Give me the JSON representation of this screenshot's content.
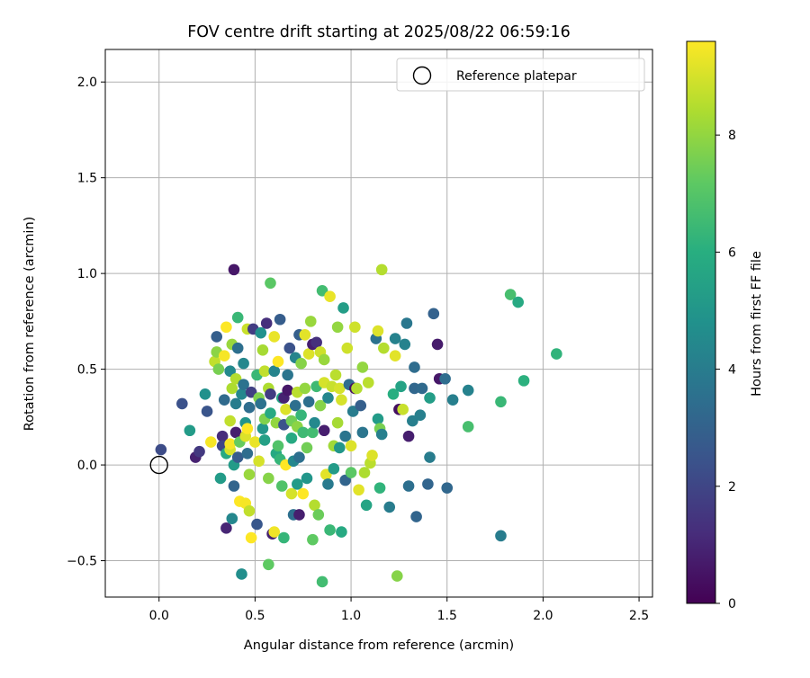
{
  "chart_data": {
    "type": "scatter",
    "title": "FOV centre drift starting at 2025/08/22 06:59:16",
    "xlabel": "Angular distance from reference (arcmin)",
    "ylabel": "Rotation from reference (arcmin)",
    "xlim": [
      -0.28,
      2.57
    ],
    "ylim": [
      -0.69,
      2.17
    ],
    "xticks": [
      0.0,
      0.5,
      1.0,
      1.5,
      2.0,
      2.5
    ],
    "xtick_labels": [
      "0.0",
      "0.5",
      "1.0",
      "1.5",
      "2.0",
      "2.5"
    ],
    "yticks": [
      -0.5,
      0.0,
      0.5,
      1.0,
      1.5,
      2.0
    ],
    "ytick_labels": [
      "−0.5",
      "0.0",
      "0.5",
      "1.0",
      "1.5",
      "2.0"
    ],
    "grid": true,
    "legend": {
      "position": "top-right",
      "entries": [
        {
          "label": "Reference platepar",
          "marker": "open-circle"
        }
      ]
    },
    "reference_point": {
      "x": 0.0,
      "y": 0.0
    },
    "colorbar": {
      "label": "Hours from first FF file",
      "range": [
        0,
        9.6
      ],
      "ticks": [
        0,
        2,
        4,
        6,
        8
      ],
      "tick_labels": [
        "0",
        "2",
        "4",
        "6",
        "8"
      ],
      "colormap": "viridis"
    },
    "series": [
      {
        "color_variable": "Hours from first FF file",
        "points": [
          [
            0.01,
            0.08,
            2.2
          ],
          [
            0.12,
            0.32,
            2.4
          ],
          [
            0.16,
            0.18,
            5.2
          ],
          [
            0.19,
            0.04,
            0.9
          ],
          [
            0.21,
            0.07,
            1.6
          ],
          [
            0.24,
            0.37,
            4.8
          ],
          [
            0.25,
            0.28,
            2.5
          ],
          [
            0.27,
            0.12,
            9.5
          ],
          [
            0.29,
            0.54,
            8.7
          ],
          [
            0.3,
            0.67,
            2.9
          ],
          [
            0.3,
            0.59,
            7.9
          ],
          [
            0.31,
            0.5,
            7.6
          ],
          [
            0.32,
            -0.07,
            5.2
          ],
          [
            0.33,
            0.15,
            1.2
          ],
          [
            0.33,
            0.1,
            2.0
          ],
          [
            0.34,
            0.57,
            9.5
          ],
          [
            0.34,
            0.34,
            3.3
          ],
          [
            0.35,
            0.06,
            5.8
          ],
          [
            0.35,
            0.72,
            9.6
          ],
          [
            0.35,
            -0.33,
            1.0
          ],
          [
            0.37,
            0.08,
            9.0
          ],
          [
            0.37,
            0.49,
            4.5
          ],
          [
            0.38,
            0.63,
            8.1
          ],
          [
            0.38,
            0.4,
            8.4
          ],
          [
            0.37,
            0.23,
            8.7
          ],
          [
            0.37,
            0.11,
            9.5
          ],
          [
            0.38,
            -0.28,
            4.4
          ],
          [
            0.39,
            0.0,
            5.2
          ],
          [
            0.39,
            -0.11,
            3.1
          ],
          [
            0.39,
            1.02,
            0.6
          ],
          [
            0.4,
            0.17,
            0.8
          ],
          [
            0.4,
            0.45,
            8.5
          ],
          [
            0.4,
            0.32,
            4.0
          ],
          [
            0.41,
            0.04,
            2.8
          ],
          [
            0.41,
            0.77,
            6.4
          ],
          [
            0.41,
            0.61,
            3.5
          ],
          [
            0.42,
            -0.19,
            9.6
          ],
          [
            0.42,
            0.12,
            7.3
          ],
          [
            0.43,
            -0.57,
            4.7
          ],
          [
            0.43,
            0.37,
            4.4
          ],
          [
            0.44,
            0.53,
            4.4
          ],
          [
            0.44,
            0.42,
            3.6
          ],
          [
            0.45,
            0.15,
            9.1
          ],
          [
            0.45,
            0.22,
            4.9
          ],
          [
            0.45,
            -0.2,
            9.5
          ],
          [
            0.46,
            0.19,
            9.7
          ],
          [
            0.46,
            0.06,
            3.4
          ],
          [
            0.46,
            0.71,
            8.8
          ],
          [
            0.47,
            -0.05,
            8.1
          ],
          [
            0.47,
            -0.24,
            8.7
          ],
          [
            0.47,
            0.3,
            3.4
          ],
          [
            0.48,
            -0.38,
            9.7
          ],
          [
            0.48,
            0.38,
            1.8
          ],
          [
            0.49,
            0.71,
            1.7
          ],
          [
            0.5,
            0.12,
            9.3
          ],
          [
            0.51,
            0.47,
            6.4
          ],
          [
            0.51,
            -0.31,
            2.6
          ],
          [
            0.52,
            0.02,
            9.0
          ],
          [
            0.52,
            0.35,
            7.7
          ],
          [
            0.53,
            0.69,
            4.8
          ],
          [
            0.53,
            0.32,
            3.6
          ],
          [
            0.54,
            0.19,
            5.0
          ],
          [
            0.54,
            0.6,
            8.3
          ],
          [
            0.55,
            0.49,
            8.7
          ],
          [
            0.55,
            0.24,
            7.7
          ],
          [
            0.55,
            0.13,
            5.4
          ],
          [
            0.56,
            0.74,
            1.3
          ],
          [
            0.57,
            -0.52,
            7.2
          ],
          [
            0.57,
            0.4,
            8.4
          ],
          [
            0.57,
            -0.07,
            7.8
          ],
          [
            0.58,
            0.95,
            7.1
          ],
          [
            0.58,
            0.37,
            1.7
          ],
          [
            0.58,
            0.27,
            5.8
          ],
          [
            0.59,
            -0.36,
            0.9
          ],
          [
            0.6,
            0.67,
            9.3
          ],
          [
            0.6,
            -0.35,
            9.4
          ],
          [
            0.6,
            0.49,
            4.3
          ],
          [
            0.61,
            0.22,
            8.0
          ],
          [
            0.61,
            0.06,
            5.8
          ],
          [
            0.62,
            0.54,
            9.6
          ],
          [
            0.62,
            0.1,
            6.9
          ],
          [
            0.63,
            0.76,
            2.8
          ],
          [
            0.63,
            0.03,
            6.3
          ],
          [
            0.64,
            0.35,
            5.6
          ],
          [
            0.64,
            -0.11,
            6.9
          ],
          [
            0.65,
            0.35,
            0.9
          ],
          [
            0.65,
            -0.38,
            6.3
          ],
          [
            0.65,
            0.21,
            2.4
          ],
          [
            0.66,
            0.0,
            9.7
          ],
          [
            0.66,
            0.29,
            9.1
          ],
          [
            0.67,
            0.47,
            3.7
          ],
          [
            0.67,
            0.39,
            0.6
          ],
          [
            0.68,
            0.61,
            2.4
          ],
          [
            0.69,
            0.23,
            7.5
          ],
          [
            0.69,
            0.14,
            5.8
          ],
          [
            0.69,
            -0.15,
            9.0
          ],
          [
            0.7,
            0.02,
            4.4
          ],
          [
            0.7,
            -0.26,
            3.5
          ],
          [
            0.71,
            0.56,
            4.3
          ],
          [
            0.71,
            0.31,
            3.5
          ],
          [
            0.72,
            0.38,
            8.6
          ],
          [
            0.72,
            0.2,
            7.9
          ],
          [
            0.72,
            -0.1,
            5.2
          ],
          [
            0.73,
            0.68,
            2.9
          ],
          [
            0.73,
            0.04,
            3.5
          ],
          [
            0.73,
            -0.26,
            0.8
          ],
          [
            0.74,
            0.53,
            7.8
          ],
          [
            0.74,
            0.26,
            6.3
          ],
          [
            0.75,
            0.17,
            6.5
          ],
          [
            0.75,
            -0.15,
            9.6
          ],
          [
            0.76,
            0.68,
            9.2
          ],
          [
            0.76,
            0.4,
            8.0
          ],
          [
            0.77,
            -0.07,
            5.0
          ],
          [
            0.77,
            0.09,
            7.5
          ],
          [
            0.78,
            0.58,
            9.1
          ],
          [
            0.78,
            0.33,
            3.5
          ],
          [
            0.79,
            0.75,
            8.1
          ],
          [
            0.8,
            -0.39,
            7.2
          ],
          [
            0.8,
            0.63,
            0.8
          ],
          [
            0.8,
            0.17,
            6.6
          ],
          [
            0.81,
            0.22,
            4.5
          ],
          [
            0.81,
            -0.21,
            8.5
          ],
          [
            0.82,
            0.41,
            6.5
          ],
          [
            0.82,
            0.64,
            1.3
          ],
          [
            0.83,
            -0.26,
            7.4
          ],
          [
            0.84,
            0.59,
            8.9
          ],
          [
            0.84,
            0.31,
            7.8
          ],
          [
            0.85,
            0.91,
            6.6
          ],
          [
            0.85,
            -0.61,
            6.6
          ],
          [
            0.86,
            0.43,
            9.0
          ],
          [
            0.86,
            0.55,
            8.1
          ],
          [
            0.86,
            0.18,
            0.8
          ],
          [
            0.87,
            -0.05,
            9.2
          ],
          [
            0.88,
            0.35,
            4.4
          ],
          [
            0.88,
            -0.1,
            3.9
          ],
          [
            0.89,
            0.88,
            9.3
          ],
          [
            0.89,
            -0.34,
            6.4
          ],
          [
            0.9,
            0.41,
            8.8
          ],
          [
            0.91,
            0.1,
            8.2
          ],
          [
            0.91,
            -0.02,
            5.2
          ],
          [
            0.92,
            0.47,
            8.6
          ],
          [
            0.93,
            0.72,
            8.0
          ],
          [
            0.93,
            0.22,
            8.3
          ],
          [
            0.94,
            0.4,
            9.0
          ],
          [
            0.94,
            0.09,
            5.0
          ],
          [
            0.95,
            0.34,
            9.0
          ],
          [
            0.95,
            -0.35,
            5.8
          ],
          [
            0.96,
            0.82,
            5.3
          ],
          [
            0.97,
            -0.08,
            3.1
          ],
          [
            0.97,
            0.15,
            3.7
          ],
          [
            0.98,
            0.61,
            8.9
          ],
          [
            0.99,
            0.42,
            3.4
          ],
          [
            1.0,
            0.1,
            9.1
          ],
          [
            1.0,
            -0.04,
            7.1
          ],
          [
            1.01,
            0.28,
            4.0
          ],
          [
            1.02,
            0.4,
            0.4
          ],
          [
            1.02,
            0.72,
            8.9
          ],
          [
            1.03,
            0.4,
            8.5
          ],
          [
            1.04,
            -0.13,
            9.2
          ],
          [
            1.05,
            0.31,
            2.9
          ],
          [
            1.06,
            0.51,
            8.0
          ],
          [
            1.06,
            0.17,
            3.7
          ],
          [
            1.07,
            -0.04,
            8.4
          ],
          [
            1.08,
            -0.21,
            5.6
          ],
          [
            1.09,
            0.43,
            8.6
          ],
          [
            1.1,
            0.01,
            8.6
          ],
          [
            1.11,
            0.05,
            9.1
          ],
          [
            1.13,
            0.66,
            3.6
          ],
          [
            1.14,
            0.24,
            5.2
          ],
          [
            1.14,
            0.7,
            9.1
          ],
          [
            1.15,
            0.19,
            7.6
          ],
          [
            1.15,
            -0.12,
            6.2
          ],
          [
            1.16,
            0.16,
            4.1
          ],
          [
            1.16,
            1.02,
            8.5
          ],
          [
            1.17,
            0.61,
            8.5
          ],
          [
            1.2,
            -0.22,
            4.0
          ],
          [
            1.22,
            0.37,
            6.0
          ],
          [
            1.23,
            0.66,
            4.2
          ],
          [
            1.23,
            0.57,
            9.2
          ],
          [
            1.24,
            -0.58,
            7.8
          ],
          [
            1.25,
            0.29,
            0.4
          ],
          [
            1.26,
            0.41,
            5.5
          ],
          [
            1.27,
            0.29,
            8.8
          ],
          [
            1.28,
            0.63,
            4.2
          ],
          [
            1.29,
            0.74,
            3.8
          ],
          [
            1.3,
            0.15,
            0.8
          ],
          [
            1.3,
            -0.11,
            3.5
          ],
          [
            1.32,
            0.23,
            4.1
          ],
          [
            1.33,
            0.4,
            3.2
          ],
          [
            1.33,
            0.51,
            3.4
          ],
          [
            1.34,
            -0.27,
            3.1
          ],
          [
            1.36,
            0.26,
            4.1
          ],
          [
            1.37,
            0.4,
            3.3
          ],
          [
            1.4,
            -0.1,
            3.1
          ],
          [
            1.41,
            0.35,
            5.3
          ],
          [
            1.41,
            0.04,
            4.0
          ],
          [
            1.43,
            0.79,
            3.0
          ],
          [
            1.45,
            0.63,
            0.7
          ],
          [
            1.46,
            0.45,
            0.6
          ],
          [
            1.49,
            0.45,
            3.4
          ],
          [
            1.5,
            -0.12,
            3.2
          ],
          [
            1.53,
            0.34,
            4.1
          ],
          [
            1.61,
            0.2,
            6.7
          ],
          [
            1.61,
            0.39,
            4.2
          ],
          [
            1.78,
            0.33,
            6.4
          ],
          [
            1.78,
            -0.37,
            4.0
          ],
          [
            1.83,
            0.89,
            6.7
          ],
          [
            1.87,
            0.85,
            5.8
          ],
          [
            1.9,
            0.44,
            6.1
          ],
          [
            2.07,
            0.58,
            6.2
          ]
        ]
      }
    ]
  }
}
